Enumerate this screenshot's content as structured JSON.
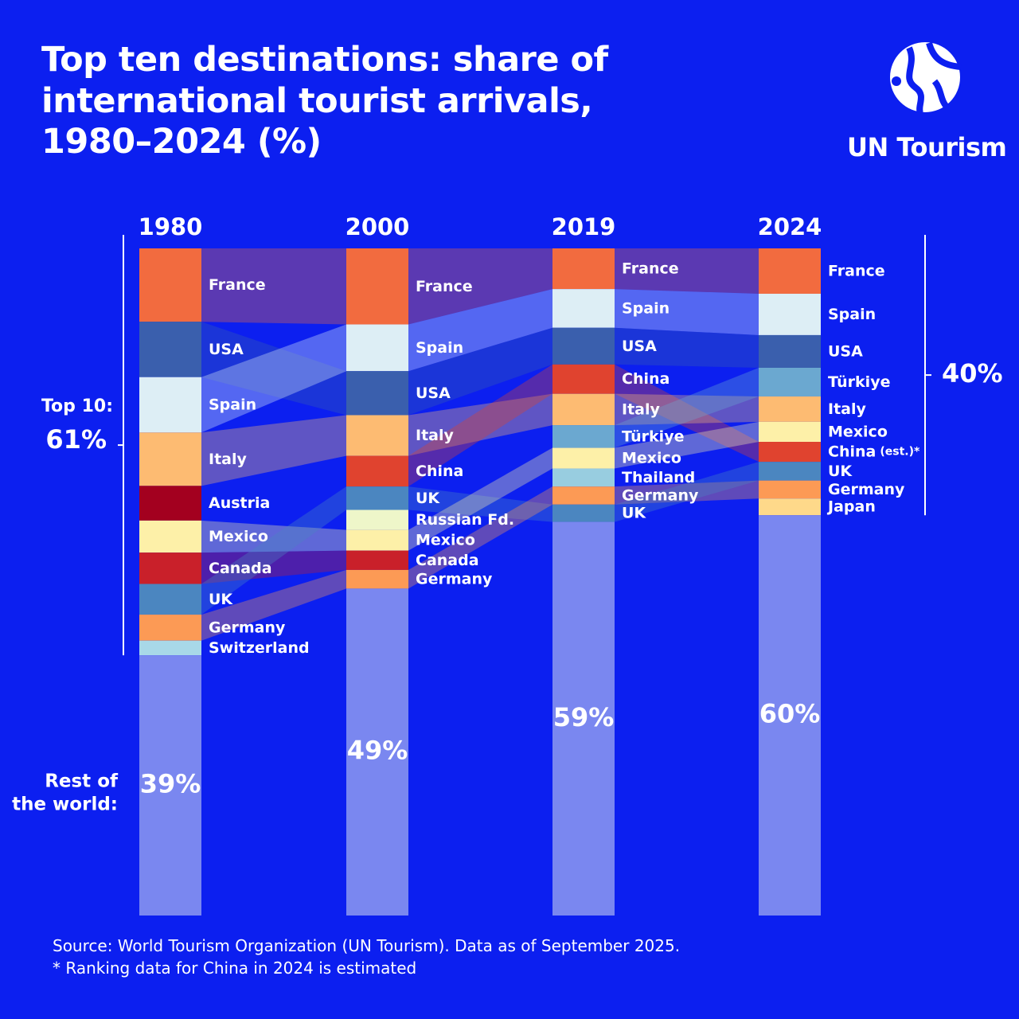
{
  "brand": "UN Tourism",
  "chart_data": {
    "type": "stacked-flow",
    "title": "Top ten destinations: share of international tourist arrivals, 1980–2024 (%)",
    "rest_name": [
      "Rest of",
      "the world:"
    ],
    "rest_color": "#7a87f0",
    "top10": {
      "label": "Top 10:",
      "left": {
        "value": 61,
        "label": "61%"
      },
      "right": {
        "value": 40,
        "label": "40%"
      }
    },
    "columns": [
      {
        "label": "1980",
        "rest": 39,
        "rest_label": "39%",
        "segments": [
          {
            "name": "France",
            "color": "#f26b3f",
            "value": 11
          },
          {
            "name": "USA",
            "color": "#3a5fad",
            "value": 8.3
          },
          {
            "name": "Spain",
            "color": "#ddeef5",
            "value": 8.3
          },
          {
            "name": "Italy",
            "color": "#fdbb72",
            "value": 8
          },
          {
            "name": "Austria",
            "color": "#a3001f",
            "value": 5.2
          },
          {
            "name": "Mexico",
            "color": "#fdf0a8",
            "value": 4.8
          },
          {
            "name": "Canada",
            "color": "#c9202a",
            "value": 4.7
          },
          {
            "name": "UK",
            "color": "#4b86c0",
            "value": 4.6
          },
          {
            "name": "Germany",
            "color": "#fc9a55",
            "value": 3.9
          },
          {
            "name": "Switzerland",
            "color": "#a8d8e8",
            "value": 2.2
          }
        ]
      },
      {
        "label": "2000",
        "rest": 49,
        "rest_label": "49%",
        "segments": [
          {
            "name": "France",
            "color": "#f26b3f",
            "value": 11.4
          },
          {
            "name": "Spain",
            "color": "#ddeef5",
            "value": 7
          },
          {
            "name": "USA",
            "color": "#3a5fad",
            "value": 6.6
          },
          {
            "name": "Italy",
            "color": "#fdbb72",
            "value": 6.1
          },
          {
            "name": "China",
            "color": "#e0432f",
            "value": 4.6
          },
          {
            "name": "UK",
            "color": "#4b86c0",
            "value": 3.5
          },
          {
            "name": "Russian Fd.",
            "color": "#eef6c9",
            "value": 3
          },
          {
            "name": "Mexico",
            "color": "#fdf0a8",
            "value": 3.1
          },
          {
            "name": "Canada",
            "color": "#c9202a",
            "value": 2.9
          },
          {
            "name": "Germany",
            "color": "#fc9a55",
            "value": 2.8
          }
        ]
      },
      {
        "label": "2019",
        "rest": 59,
        "rest_label": "59%",
        "segments": [
          {
            "name": "France",
            "color": "#f26b3f",
            "value": 6.1
          },
          {
            "name": "Spain",
            "color": "#ddeef5",
            "value": 5.8
          },
          {
            "name": "USA",
            "color": "#3a5fad",
            "value": 5.5
          },
          {
            "name": "China",
            "color": "#e0432f",
            "value": 4.4
          },
          {
            "name": "Italy",
            "color": "#fdbb72",
            "value": 4.7
          },
          {
            "name": "Türkiye",
            "color": "#6ba8d0",
            "value": 3.4
          },
          {
            "name": "Mexico",
            "color": "#fdf0a8",
            "value": 3.1
          },
          {
            "name": "Thailand",
            "color": "#98cde0",
            "value": 2.7
          },
          {
            "name": "Germany",
            "color": "#fc9a55",
            "value": 2.7
          },
          {
            "name": "UK",
            "color": "#4b86c0",
            "value": 2.6
          }
        ]
      },
      {
        "label": "2024",
        "rest": 60,
        "rest_label": "60%",
        "segments": [
          {
            "name": "France",
            "color": "#f26b3f",
            "value": 6.8
          },
          {
            "name": "Spain",
            "color": "#ddeef5",
            "value": 6.2
          },
          {
            "name": "USA",
            "color": "#3a5fad",
            "value": 4.9
          },
          {
            "name": "Türkiye",
            "color": "#6ba8d0",
            "value": 4.3
          },
          {
            "name": "Italy",
            "color": "#fdbb72",
            "value": 3.8
          },
          {
            "name": "Mexico",
            "color": "#fdf0a8",
            "value": 3
          },
          {
            "name": "China",
            "suffix": "(est.)*",
            "color": "#e0432f",
            "value": 3
          },
          {
            "name": "UK",
            "color": "#4b86c0",
            "value": 2.8
          },
          {
            "name": "Germany",
            "color": "#fc9a55",
            "value": 2.7
          },
          {
            "name": "Japan",
            "color": "#fed98a",
            "value": 2.5
          }
        ]
      }
    ],
    "source": "Source: World Tourism Organization (UN Tourism). Data as of September 2025.",
    "footnote": "* Ranking data for China in 2024 is estimated"
  }
}
